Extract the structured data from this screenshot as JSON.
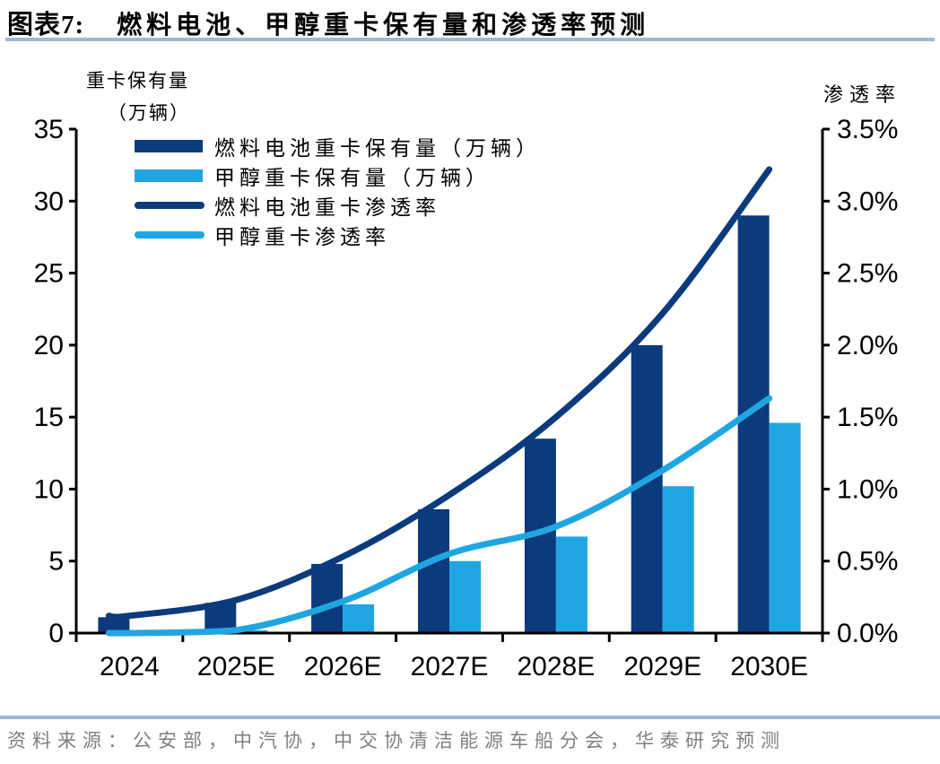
{
  "header": {
    "title_prefix": "图表7:",
    "title": "燃料电池、甲醇重卡保有量和渗透率预测"
  },
  "footer": {
    "source": "资料来源：公安部，中汽协，中交协清洁能源车船分会，华泰研究预测"
  },
  "colors": {
    "dark_blue": "#0B3B7C",
    "light_blue": "#1FA6E2",
    "rule_blue": "#9FB9D3",
    "axis_black": "#000000",
    "source_gray": "#7F7F7F"
  },
  "chart_data": {
    "type": "bar",
    "subtype": "combo bar + smoothed line, dual y-axis",
    "categories": [
      "2024",
      "2025E",
      "2026E",
      "2027E",
      "2028E",
      "2029E",
      "2030E"
    ],
    "series": [
      {
        "name": "燃料电池重卡保有量（万辆）",
        "kind": "bar",
        "axis": "left",
        "color_key": "dark_blue",
        "values": [
          1.1,
          2.1,
          4.8,
          8.6,
          13.5,
          20.0,
          29.0
        ]
      },
      {
        "name": "甲醇重卡保有量（万辆）",
        "kind": "bar",
        "axis": "left",
        "color_key": "light_blue",
        "values": [
          0.0,
          0.2,
          2.0,
          5.0,
          6.7,
          10.2,
          14.6
        ]
      },
      {
        "name": "燃料电池重卡渗透率",
        "kind": "line",
        "axis": "right",
        "color_key": "dark_blue",
        "values": [
          0.12,
          0.23,
          0.53,
          0.96,
          1.5,
          2.22,
          3.22
        ]
      },
      {
        "name": "甲醇重卡渗透率",
        "kind": "line",
        "axis": "right",
        "color_key": "light_blue",
        "values": [
          0.0,
          0.02,
          0.22,
          0.55,
          0.74,
          1.13,
          1.63
        ]
      }
    ],
    "left_axis": {
      "title_line1": "重卡保有量",
      "title_line2": "（万辆）",
      "range": [
        0,
        35
      ],
      "ticks": [
        0,
        5,
        10,
        15,
        20,
        25,
        30,
        35
      ],
      "tick_labels": [
        "0",
        "5",
        "10",
        "15",
        "20",
        "25",
        "30",
        "35"
      ]
    },
    "right_axis": {
      "title": "渗透率",
      "range": [
        0,
        3.5
      ],
      "ticks": [
        0,
        0.5,
        1.0,
        1.5,
        2.0,
        2.5,
        3.0,
        3.5
      ],
      "tick_labels": [
        "0.0%",
        "0.5%",
        "1.0%",
        "1.5%",
        "2.0%",
        "2.5%",
        "3.0%",
        "3.5%"
      ]
    },
    "legend_position": "inside-top-left",
    "grid": false
  }
}
